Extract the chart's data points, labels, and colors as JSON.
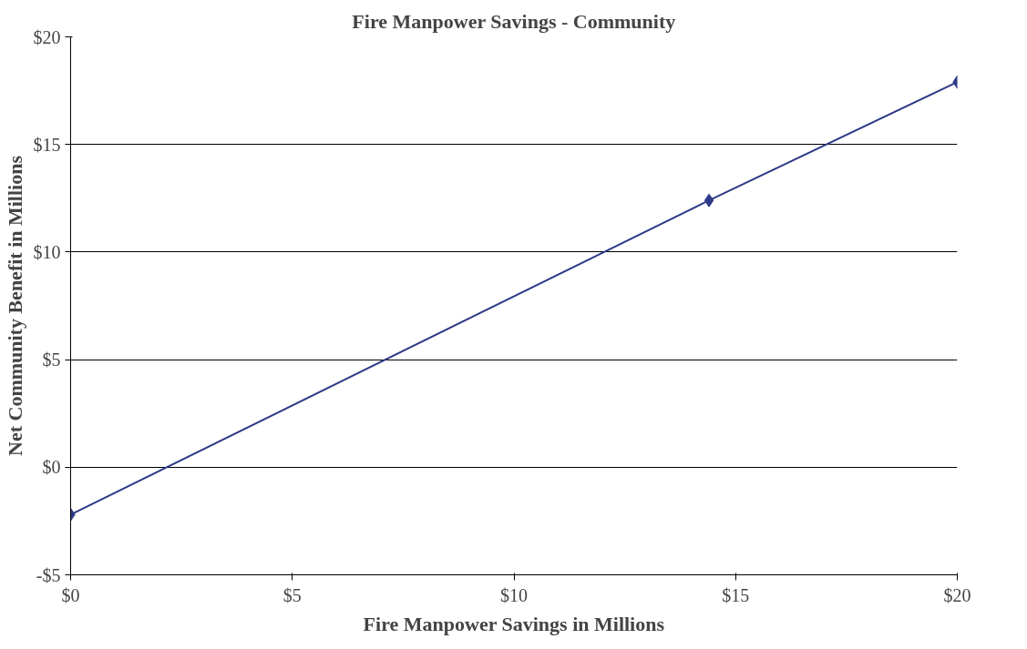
{
  "chart_data": {
    "type": "line",
    "title": "Fire Manpower Savings - Community",
    "xlabel": "Fire Manpower Savings in Millions",
    "ylabel": "Net Community Benefit in Millions",
    "x": [
      0,
      14.4,
      20
    ],
    "series": [
      {
        "color": "#2e3a87",
        "values": [
          -2.2,
          12.4,
          17.9
        ]
      }
    ],
    "xlim": [
      0,
      20
    ],
    "xticks": [
      {
        "value": 0,
        "label": "$0"
      },
      {
        "value": 5,
        "label": "$5"
      },
      {
        "value": 10,
        "label": "$10"
      },
      {
        "value": 15,
        "label": "$15"
      },
      {
        "value": 20,
        "label": "$20"
      }
    ],
    "ylim": [
      -5,
      20
    ],
    "yticks": [
      {
        "value": -5,
        "label": "-$5"
      },
      {
        "value": 0,
        "label": "$0"
      },
      {
        "value": 5,
        "label": "$5"
      },
      {
        "value": 10,
        "label": "$10"
      },
      {
        "value": 15,
        "label": "$15"
      },
      {
        "value": 20,
        "label": "$20"
      }
    ],
    "grid": "y",
    "marker": "diamond",
    "line_style": "solid"
  }
}
